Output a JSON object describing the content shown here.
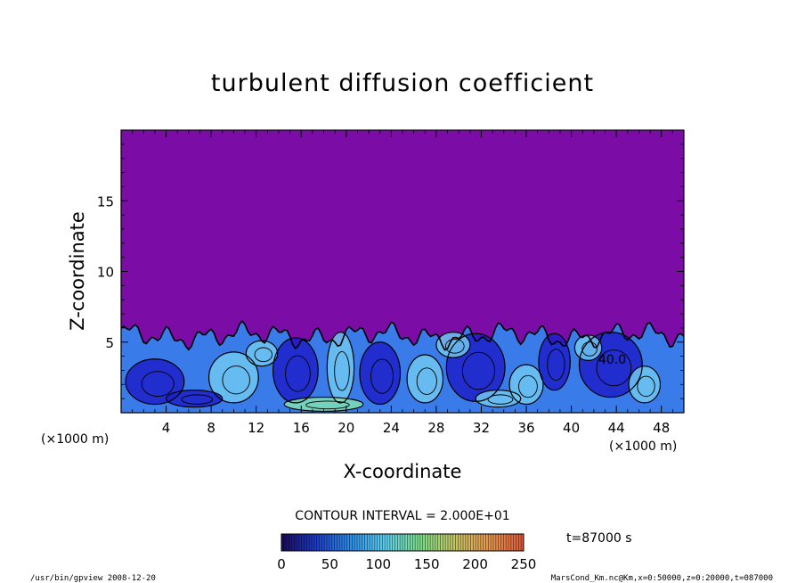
{
  "chart_data": {
    "type": "heatmap",
    "title": "turbulent diffusion coefficient",
    "xlabel": "X-coordinate",
    "ylabel": "Z-coordinate",
    "x_unit": "(×1000 m)",
    "z_unit": "(×1000 m)",
    "xlim": [
      0,
      50
    ],
    "ylim": [
      0,
      20
    ],
    "x_ticks": [
      4,
      8,
      12,
      16,
      20,
      24,
      28,
      32,
      36,
      40,
      44,
      48
    ],
    "y_ticks": [
      5,
      10,
      15
    ],
    "contour_interval": "CONTOUR INTERVAL = 2.000E+01",
    "contour_label": "40.0",
    "time_label": "t=87000 s",
    "colorbar": {
      "min": 0,
      "max": 250,
      "ticks": [
        0,
        50,
        100,
        150,
        200,
        250
      ],
      "colors": [
        "#1a0a5e",
        "#1e3cc8",
        "#2f8fe8",
        "#5fd0f0",
        "#7ee08a",
        "#c8c868",
        "#e89a50",
        "#e05a3c"
      ]
    },
    "colors": {
      "background_field": "#7b0ca5",
      "low_field": "#1d20c8",
      "mid_field": "#3a7bea",
      "high_field": "#6ec8f2",
      "peak_field": "#7fe0b4",
      "contour": "#000000"
    },
    "boundary_layer_top_approx": 6.2
  },
  "footer": {
    "left": "/usr/bin/gpview   2008-12-20",
    "right": "MarsCond_Km.nc@Km,x=0:50000,z=0:20000,t=087000"
  }
}
